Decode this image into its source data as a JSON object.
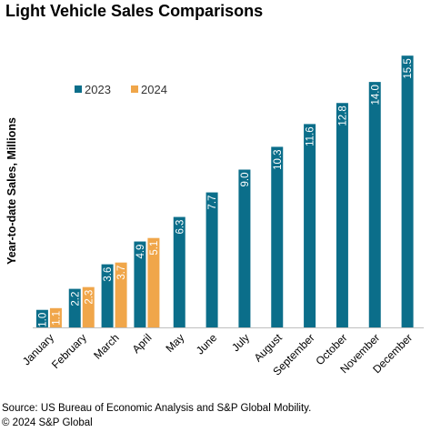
{
  "chart_data": {
    "type": "bar",
    "title": "Light Vehicle Sales Comparisons",
    "ylabel": "Year-to-date Sales, Millions",
    "xlabel": "",
    "categories": [
      "January",
      "February",
      "March",
      "April",
      "May",
      "June",
      "July",
      "August",
      "September",
      "October",
      "November",
      "December"
    ],
    "series": [
      {
        "name": "2023",
        "color": "#0b6e8a",
        "values": [
          1.0,
          2.2,
          3.6,
          4.9,
          6.3,
          7.7,
          9.0,
          10.3,
          11.6,
          12.8,
          14.0,
          15.5
        ]
      },
      {
        "name": "2024",
        "color": "#f0a64a",
        "values": [
          1.1,
          2.3,
          3.7,
          5.1,
          null,
          null,
          null,
          null,
          null,
          null,
          null,
          null
        ]
      }
    ],
    "value_labels": {
      "2023": [
        "1.0",
        "2.2",
        "3.6",
        "4.9",
        "6.3",
        "7.7",
        "9.0",
        "10.3",
        "11.6",
        "12.8",
        "14.0",
        "15.5"
      ],
      "2024": [
        "1.1",
        "2.3",
        "3.7",
        "5.1",
        "",
        "",
        "",
        "",
        "",
        "",
        "",
        ""
      ]
    },
    "ylim": [
      0,
      16.6
    ],
    "grid": false,
    "legend": "top-left",
    "source": "Source: US Bureau of Economic Analysis and S&P Global Mobility.",
    "copyright": "© 2024 S&P Global"
  }
}
